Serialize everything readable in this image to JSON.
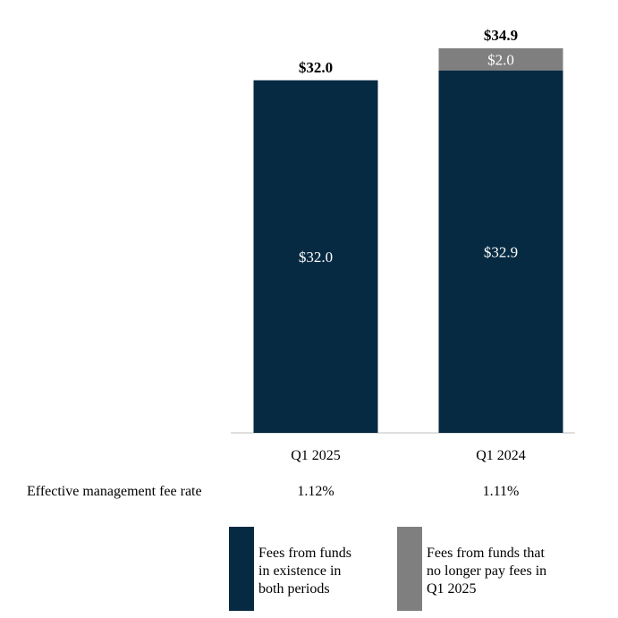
{
  "chart_data": {
    "type": "bar",
    "stacked": true,
    "title": "",
    "xlabel": "",
    "ylabel": "",
    "ylim": [
      0,
      36
    ],
    "categories": [
      "Q1 2025",
      "Q1 2024"
    ],
    "series": [
      {
        "name": "Fees from funds in existence in both periods",
        "name_lines": [
          "Fees from funds",
          "in existence in",
          "both periods"
        ],
        "color": "#062A42",
        "values": [
          32.0,
          32.9
        ],
        "labels": [
          "$32.0",
          "$32.9"
        ]
      },
      {
        "name": "Fees from funds that no longer pay fees in Q1 2025",
        "name_lines": [
          "Fees from funds that",
          "no longer pay fees in",
          "Q1 2025"
        ],
        "color": "#7F7F7F",
        "values": [
          0,
          2.0
        ],
        "labels": [
          "",
          "$2.0"
        ]
      }
    ],
    "totals": [
      32.0,
      34.9
    ],
    "total_labels": [
      "$32.0",
      "$34.9"
    ],
    "rate_row": {
      "label": "Effective management fee rate",
      "values": [
        "1.12%",
        "1.11%"
      ]
    },
    "legend_position": "bottom"
  }
}
